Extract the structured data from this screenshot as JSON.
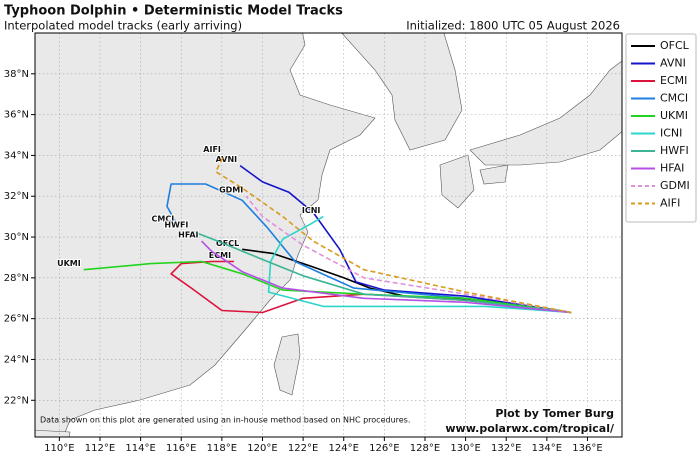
{
  "chart_data": {
    "type": "map",
    "title": "Typhoon Dolphin • Deterministic Model Tracks",
    "subtitle": "Interpolated model tracks (early arriving)",
    "initialized": "Initialized: 1800 UTC 05 August 2026",
    "note": "Data shown on this plot are generated using an in-house method based on NHC procedures.",
    "credit": "Plot by Tomer Burg",
    "url": "www.polarwx.com/tropical/",
    "xlim": [
      108.8,
      137.7
    ],
    "ylim": [
      20.2,
      40.0
    ],
    "xticks": [
      {
        "value": 110,
        "label": "110°E"
      },
      {
        "value": 112,
        "label": "112°E"
      },
      {
        "value": 114,
        "label": "114°E"
      },
      {
        "value": 116,
        "label": "116°E"
      },
      {
        "value": 118,
        "label": "118°E"
      },
      {
        "value": 120,
        "label": "120°E"
      },
      {
        "value": 122,
        "label": "122°E"
      },
      {
        "value": 124,
        "label": "124°E"
      },
      {
        "value": 126,
        "label": "126°E"
      },
      {
        "value": 128,
        "label": "128°E"
      },
      {
        "value": 130,
        "label": "130°E"
      },
      {
        "value": 132,
        "label": "132°E"
      },
      {
        "value": 134,
        "label": "134°E"
      },
      {
        "value": 136,
        "label": "136°E"
      }
    ],
    "yticks": [
      {
        "value": 22,
        "label": "22°N"
      },
      {
        "value": 24,
        "label": "24°N"
      },
      {
        "value": 26,
        "label": "26°N"
      },
      {
        "value": 28,
        "label": "28°N"
      },
      {
        "value": 30,
        "label": "30°N"
      },
      {
        "value": 32,
        "label": "32°N"
      },
      {
        "value": 34,
        "label": "34°N"
      },
      {
        "value": 36,
        "label": "36°N"
      },
      {
        "value": 38,
        "label": "38°N"
      }
    ],
    "grid": true,
    "legend": "right",
    "series": [
      {
        "name": "OFCL",
        "color": "#000000",
        "dash": false,
        "x": [
          135.2,
          131,
          127,
          125.3,
          124,
          122.3,
          120.5,
          119
        ],
        "values": [
          26.3,
          26.9,
          27.1,
          27.5,
          28.0,
          28.6,
          29.2,
          29.4
        ]
      },
      {
        "name": "AVNI",
        "color": "#1414c8",
        "dash": false,
        "x": [
          135.2,
          130,
          126,
          124.6,
          123.8,
          122.5,
          121.3,
          120,
          118.9
        ],
        "values": [
          26.3,
          27.1,
          27.4,
          27.8,
          29.4,
          31.2,
          32.2,
          32.7,
          33.5
        ]
      },
      {
        "name": "ECMI",
        "color": "#dc143c",
        "dash": false,
        "x": [
          135.2,
          130,
          125,
          122,
          120,
          118,
          116.5,
          115.5,
          116,
          117.5,
          118.6
        ],
        "values": [
          26.3,
          26.9,
          27.2,
          27.0,
          26.3,
          26.4,
          27.5,
          28.2,
          28.7,
          28.8,
          28.8
        ]
      },
      {
        "name": "CMCI",
        "color": "#1e7fe0",
        "dash": false,
        "x": [
          135.2,
          130,
          124.5,
          121.6,
          120.2,
          119,
          117.2,
          115.5,
          115.3,
          115.8
        ],
        "values": [
          26.3,
          27.0,
          27.5,
          28.8,
          30.5,
          31.8,
          32.6,
          32.6,
          31.5,
          30.6
        ]
      },
      {
        "name": "UKMI",
        "color": "#22d41e",
        "dash": false,
        "x": [
          135.2,
          130,
          125,
          121,
          119,
          117,
          114.5,
          111.2
        ],
        "values": [
          26.3,
          27.0,
          27.2,
          27.4,
          28.2,
          28.8,
          28.7,
          28.4
        ]
      },
      {
        "name": "ICNI",
        "color": "#29d6c8",
        "dash": false,
        "x": [
          135.2,
          131,
          127,
          123,
          120.3,
          120.4,
          121,
          122.3,
          123.0
        ],
        "values": [
          26.3,
          26.6,
          26.6,
          26.6,
          27.3,
          28.8,
          29.9,
          30.6,
          31.0
        ]
      },
      {
        "name": "HWFI",
        "color": "#3cb496",
        "dash": false,
        "x": [
          135.2,
          130,
          125,
          122,
          120,
          117.8,
          116.5
        ],
        "values": [
          26.3,
          26.9,
          27.2,
          28.1,
          28.9,
          29.8,
          30.3
        ]
      },
      {
        "name": "HFAI",
        "color": "#b450e6",
        "dash": false,
        "x": [
          135.2,
          130,
          125,
          121,
          119,
          117.5,
          117.0
        ],
        "values": [
          26.3,
          26.8,
          27.0,
          27.5,
          28.3,
          29.3,
          29.8
        ]
      },
      {
        "name": "GDMI",
        "color": "#e28fdc",
        "dash": true,
        "x": [
          135.2,
          130,
          125,
          122,
          120,
          119.2
        ],
        "values": [
          26.3,
          27.2,
          28.0,
          29.6,
          31.0,
          32.0
        ]
      },
      {
        "name": "AIFI",
        "color": "#d99a1e",
        "dash": true,
        "x": [
          135.2,
          130,
          125,
          122.5,
          121,
          119,
          117.7,
          118.1
        ],
        "values": [
          26.3,
          27.3,
          28.4,
          29.8,
          31,
          32.4,
          33.2,
          34.0
        ]
      }
    ]
  }
}
